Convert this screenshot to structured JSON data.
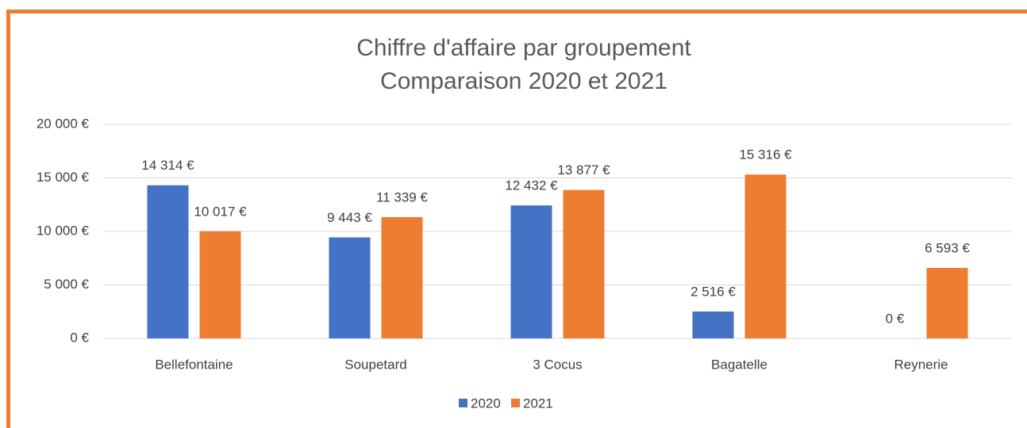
{
  "chart_data": {
    "type": "bar",
    "title": "Chiffre d'affaire par groupement",
    "subtitle": "Comparaison 2020 et 2021",
    "categories": [
      "Bellefontaine",
      "Soupetard",
      "3 Cocus",
      "Bagatelle",
      "Reynerie"
    ],
    "series": [
      {
        "name": "2020",
        "color": "#4472c4",
        "values": [
          14314,
          9443,
          12432,
          2516,
          0
        ],
        "value_labels": [
          "14 314 €",
          "9 443 €",
          "12 432 €",
          "2 516 €",
          "0 €"
        ]
      },
      {
        "name": "2021",
        "color": "#ed7d31",
        "values": [
          10017,
          11339,
          13877,
          15316,
          6593
        ],
        "value_labels": [
          "10 017 €",
          "11 339 €",
          "13 877 €",
          "15 316 €",
          "6 593 €"
        ]
      }
    ],
    "ylim": [
      0,
      20000
    ],
    "yticks": [
      {
        "value": 0,
        "label": "0 €"
      },
      {
        "value": 5000,
        "label": "5 000 €"
      },
      {
        "value": 10000,
        "label": "10 000 €"
      },
      {
        "value": 15000,
        "label": "15 000 €"
      },
      {
        "value": 20000,
        "label": "20 000 €"
      }
    ],
    "grid": true,
    "legend": "bottom"
  }
}
